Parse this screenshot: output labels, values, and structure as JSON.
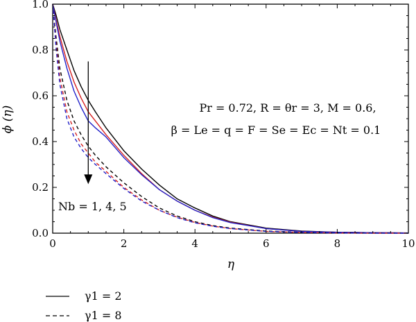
{
  "chart_data": {
    "type": "line",
    "xlabel": "η",
    "ylabel": "ϕ (η)",
    "xlim": [
      0,
      10
    ],
    "ylim": [
      0,
      1.0
    ],
    "x_ticks": [
      "0",
      "2",
      "4",
      "6",
      "8",
      "10"
    ],
    "y_ticks": [
      "0.0",
      "0.2",
      "0.4",
      "0.6",
      "0.8",
      "1.0"
    ],
    "grid": false,
    "legend_position": "bottom-left, below plot",
    "annotations": {
      "params_line1": "Pr = 0.72, R = θr = 3, M = 0.6,",
      "params_line2": "β = Le = q = F = Se = Ec = Nt = 0.1",
      "nb_label": "Nb = 1, 4, 5",
      "arrow": {
        "x": 1.0,
        "y_from": 0.75,
        "y_to": 0.22
      }
    },
    "legend": [
      {
        "label": "γ1 = 2",
        "style": "solid"
      },
      {
        "label": "γ1 = 8",
        "style": "dashed"
      }
    ],
    "colors": {
      "Nb=1": "#000000",
      "Nb=4": "#d62020",
      "Nb=5": "#2020c8"
    },
    "x": [
      0,
      0.1,
      0.2,
      0.4,
      0.6,
      0.8,
      1.0,
      1.2,
      1.5,
      2,
      2.5,
      3,
      3.5,
      4,
      4.5,
      5,
      6,
      7,
      8,
      9,
      10
    ],
    "series": [
      {
        "gamma": "2",
        "nb": "1",
        "style": "solid",
        "color": "#000000",
        "values": [
          1.0,
          0.95,
          0.89,
          0.8,
          0.71,
          0.64,
          0.58,
          0.53,
          0.46,
          0.36,
          0.28,
          0.21,
          0.15,
          0.11,
          0.075,
          0.05,
          0.022,
          0.009,
          0.004,
          0.002,
          0.001
        ]
      },
      {
        "gamma": "2",
        "nb": "4",
        "style": "solid",
        "color": "#d62020",
        "values": [
          1.0,
          0.93,
          0.86,
          0.75,
          0.66,
          0.59,
          0.53,
          0.49,
          0.43,
          0.34,
          0.26,
          0.19,
          0.14,
          0.1,
          0.07,
          0.048,
          0.02,
          0.008,
          0.004,
          0.002,
          0.001
        ]
      },
      {
        "gamma": "2",
        "nb": "5",
        "style": "solid",
        "color": "#2020c8",
        "values": [
          1.0,
          0.92,
          0.84,
          0.72,
          0.62,
          0.55,
          0.49,
          0.46,
          0.42,
          0.33,
          0.255,
          0.19,
          0.14,
          0.1,
          0.068,
          0.046,
          0.02,
          0.008,
          0.004,
          0.002,
          0.001
        ]
      },
      {
        "gamma": "8",
        "nb": "1",
        "style": "dashed",
        "color": "#000000",
        "values": [
          1.0,
          0.85,
          0.72,
          0.58,
          0.49,
          0.43,
          0.38,
          0.34,
          0.29,
          0.22,
          0.16,
          0.11,
          0.075,
          0.05,
          0.033,
          0.022,
          0.009,
          0.004,
          0.002,
          0.001,
          0.0
        ]
      },
      {
        "gamma": "8",
        "nb": "4",
        "style": "dashed",
        "color": "#d62020",
        "values": [
          1.0,
          0.82,
          0.68,
          0.53,
          0.45,
          0.39,
          0.35,
          0.31,
          0.27,
          0.2,
          0.145,
          0.1,
          0.07,
          0.047,
          0.031,
          0.02,
          0.008,
          0.003,
          0.001,
          0.0,
          0.0
        ]
      },
      {
        "gamma": "8",
        "nb": "5",
        "style": "dashed",
        "color": "#2020c8",
        "values": [
          1.0,
          0.8,
          0.65,
          0.5,
          0.42,
          0.37,
          0.33,
          0.3,
          0.26,
          0.195,
          0.14,
          0.1,
          0.068,
          0.045,
          0.03,
          0.02,
          0.008,
          0.003,
          0.001,
          0.0,
          0.0
        ]
      }
    ]
  }
}
